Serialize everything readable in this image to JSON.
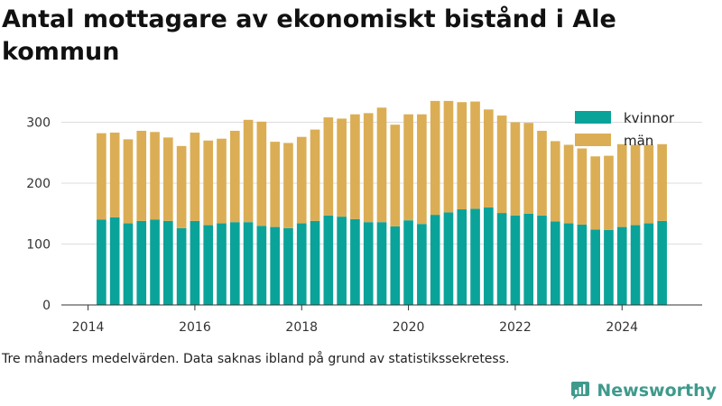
{
  "title": "Antal mottagare av ekonomiskt bistånd i Ale kommun",
  "footnote": "Tre månaders medelvärden. Data saknas ibland på grund av statistikssekretess.",
  "brand": {
    "name": "Newsworthy",
    "icon": "newsworthy-logo-icon",
    "color": "#3f9a8c"
  },
  "colors": {
    "kvinnor": "#0aa39a",
    "man": "#dbae55",
    "grid": "#dddddd",
    "axis": "#333333"
  },
  "chart_data": {
    "type": "bar",
    "stacked": true,
    "title": "Antal mottagare av ekonomiskt bistånd i Ale kommun",
    "xlabel": "",
    "ylabel": "",
    "ylim": [
      0,
      360
    ],
    "xlim": [
      2013.5,
      2025.5
    ],
    "y_ticks": [
      0,
      100,
      200,
      300
    ],
    "x_ticks": [
      2014,
      2016,
      2018,
      2020,
      2022,
      2024
    ],
    "grid": true,
    "legend_position": "top-right",
    "x": [
      2014.25,
      2014.5,
      2014.75,
      2015.0,
      2015.25,
      2015.5,
      2015.75,
      2016.0,
      2016.25,
      2016.5,
      2016.75,
      2017.0,
      2017.25,
      2017.5,
      2017.75,
      2018.0,
      2018.25,
      2018.5,
      2018.75,
      2019.0,
      2019.25,
      2019.5,
      2019.75,
      2020.0,
      2020.25,
      2020.5,
      2020.75,
      2021.0,
      2021.25,
      2021.5,
      2021.75,
      2022.0,
      2022.25,
      2022.5,
      2022.75,
      2023.0,
      2023.25,
      2023.5,
      2023.75,
      2024.0,
      2024.25,
      2024.5,
      2024.75
    ],
    "series": [
      {
        "name": "kvinnor",
        "color": "#0aa39a",
        "values": [
          140,
          144,
          134,
          138,
          140,
          138,
          126,
          138,
          131,
          134,
          136,
          136,
          130,
          128,
          126,
          134,
          138,
          147,
          145,
          141,
          136,
          136,
          129,
          139,
          133,
          148,
          152,
          157,
          158,
          160,
          151,
          147,
          150,
          147,
          137,
          134,
          132,
          124,
          123,
          128,
          131,
          134,
          138
        ]
      },
      {
        "name": "män",
        "color": "#dbae55",
        "values": [
          142,
          139,
          138,
          148,
          144,
          137,
          135,
          145,
          139,
          139,
          150,
          168,
          171,
          140,
          140,
          142,
          150,
          161,
          161,
          172,
          179,
          188,
          167,
          174,
          180,
          187,
          183,
          176,
          176,
          161,
          160,
          153,
          149,
          139,
          132,
          129,
          125,
          120,
          122,
          136,
          132,
          129,
          126
        ]
      }
    ]
  }
}
